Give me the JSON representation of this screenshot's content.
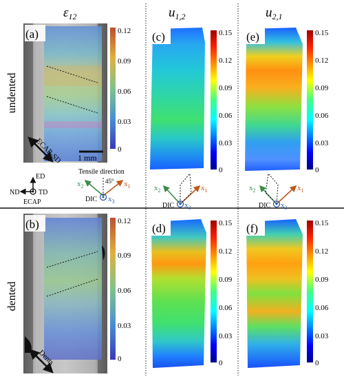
{
  "columns": {
    "col1": {
      "symbol": "ε",
      "sub": "12"
    },
    "col2": {
      "symbol": "u",
      "sub": "1,2"
    },
    "col3": {
      "symbol": "u",
      "sub": "2,1"
    }
  },
  "rows": {
    "row1": "undented",
    "row2": "dented"
  },
  "panels": {
    "a": "(a)",
    "b": "(b)",
    "c": "(c)",
    "d": "(d)",
    "e": "(e)",
    "f": "(f)"
  },
  "colorbars": {
    "strain": [
      "0.12",
      "0.09",
      "0.06",
      "0.03",
      "0"
    ],
    "gradient": [
      "0.15",
      "0.12",
      "0.09",
      "0.06",
      "0.03",
      "0"
    ]
  },
  "annotations": {
    "scale_bar": "1 mm",
    "ecap_sd": "ECAP-SD",
    "dents": "Dents",
    "tensile_direction": "Tensile direction",
    "angle": "45°",
    "ed": "ED",
    "nd": "ND",
    "td": "TD",
    "ecap": "ECAP",
    "dic": "DIC",
    "x1": "x",
    "x2": "x",
    "x3": "x",
    "sub1": "1",
    "sub2": "2",
    "sub3": "3"
  },
  "colors": {
    "x1_axis": "#c0571a",
    "x2_axis": "#3b8a4a",
    "x3_axis": "#2a5aa8",
    "jet_low": "#0000d0",
    "jet_high": "#c00000"
  }
}
